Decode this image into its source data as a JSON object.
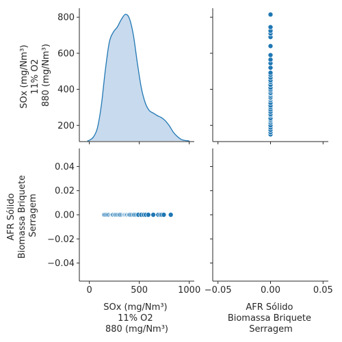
{
  "chart_data": {
    "type": "scatter",
    "subtype": "pairplot",
    "variables": [
      [
        "SOx (mg/Nm³)",
        "11% O2",
        "880 (mg/Nm³)"
      ],
      [
        "AFR Sólido",
        "Biomassa Briquete",
        "Serragem"
      ]
    ],
    "sox_values": [
      150,
      162,
      175,
      188,
      200,
      215,
      225,
      232,
      240,
      255,
      262,
      275,
      288,
      300,
      310,
      325,
      340,
      350,
      355,
      365,
      375,
      380,
      392,
      400,
      410,
      425,
      440,
      450,
      465,
      480,
      492,
      520,
      545,
      565,
      590,
      640,
      690,
      710,
      725,
      745,
      815
    ],
    "afr_values": [
      0,
      0,
      0,
      0,
      0,
      0,
      0,
      0,
      0,
      0,
      0,
      0,
      0,
      0,
      0,
      0,
      0,
      0,
      0,
      0,
      0,
      0,
      0,
      0,
      0,
      0,
      0,
      0,
      0,
      0,
      0,
      0,
      0,
      0,
      0,
      0,
      0,
      0,
      0,
      0,
      0
    ],
    "kde": {
      "x": [
        -20,
        0,
        40,
        80,
        120,
        160,
        200,
        240,
        280,
        320,
        360,
        400,
        440,
        480,
        520,
        560,
        600,
        640,
        680,
        720,
        760,
        800,
        840,
        880,
        920,
        960,
        1000
      ],
      "density_rel": [
        0.0,
        0.005,
        0.03,
        0.1,
        0.28,
        0.56,
        0.78,
        0.86,
        0.9,
        0.96,
        1.0,
        0.97,
        0.84,
        0.62,
        0.42,
        0.3,
        0.24,
        0.22,
        0.2,
        0.185,
        0.16,
        0.12,
        0.07,
        0.035,
        0.012,
        0.003,
        0.0
      ]
    },
    "x_ticks_col1": [
      "0",
      "500",
      "1000"
    ],
    "x_ticks_col2": [
      "−0.05",
      "0.00",
      "0.05"
    ],
    "y_ticks_row1": [
      "200",
      "400",
      "600",
      "800"
    ],
    "y_ticks_row2": [
      "−0.04",
      "−0.02",
      "0.00",
      "0.02",
      "0.04"
    ],
    "xlim_col1": [
      -100,
      1050
    ],
    "xlim_col2": [
      -0.055,
      0.055
    ],
    "ylim_row1": [
      110,
      850
    ],
    "ylim_row2": [
      -0.055,
      0.055
    ],
    "grid": false,
    "legend": "none"
  },
  "colors": {
    "point": "#1f77b4",
    "point_edge": "#ffffff",
    "kde_line": "#1f77b4",
    "kde_fill": "#c5d8ec"
  }
}
